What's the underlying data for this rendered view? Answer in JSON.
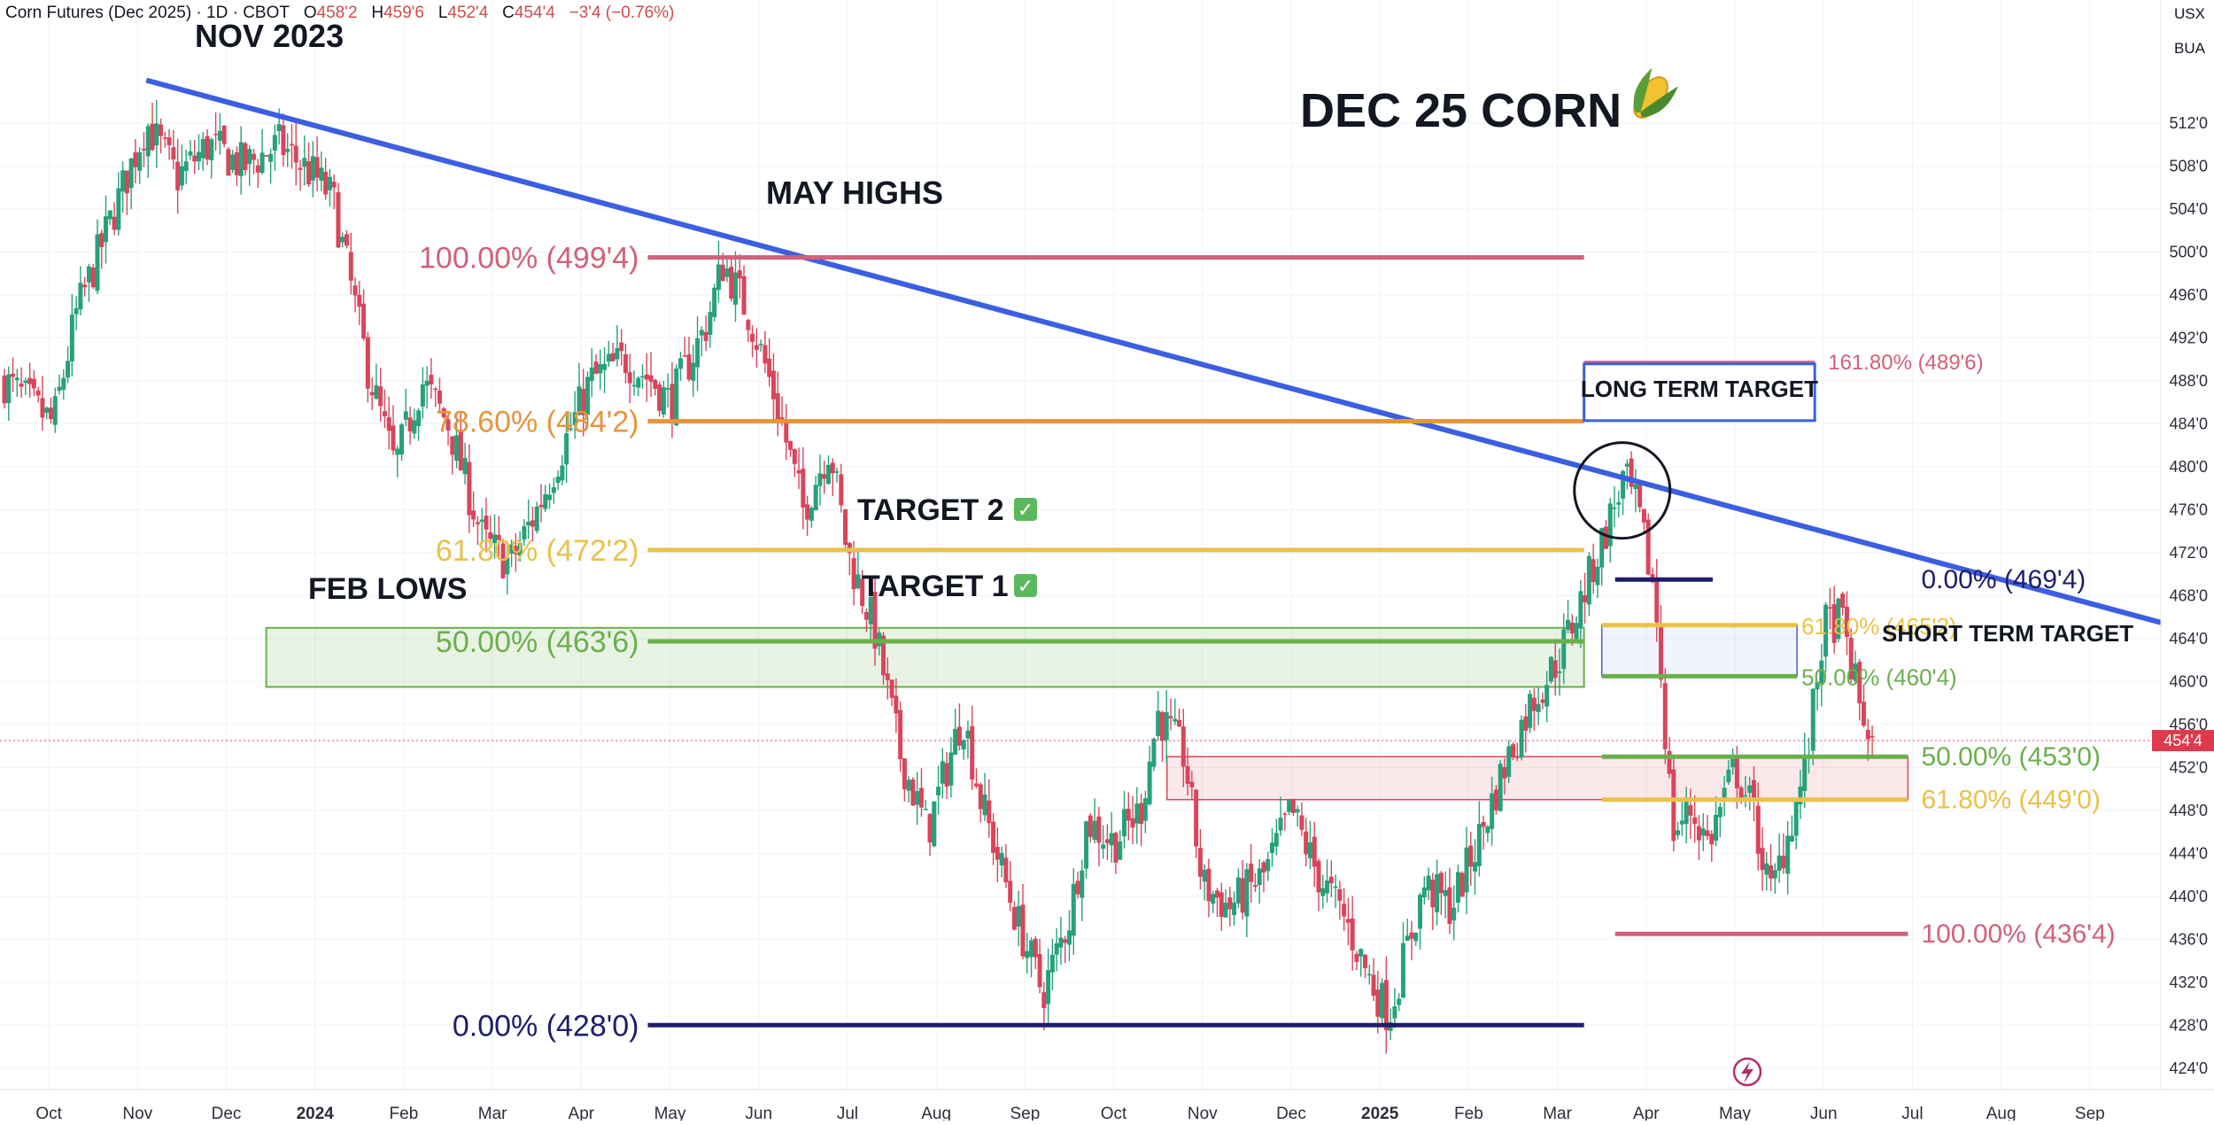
{
  "header": {
    "instrument": "Corn Futures (Dec 2025) · 1D · CBOT",
    "o_label": "O",
    "o_value": "458'2",
    "h_label": "H",
    "h_value": "459'6",
    "l_label": "L",
    "l_value": "452'4",
    "c_label": "C",
    "c_value": "454'4",
    "change": "−3'4 (−0.76%)"
  },
  "currency": "USX",
  "unit": "BUA",
  "last_price_tag": "454'4",
  "colors": {
    "up": "#26a17b",
    "down": "#d9455a",
    "trend": "#3b5fe0",
    "fib100": "#d1607a",
    "fib786": "#e6953b",
    "fib618": "#e8c24a",
    "fib50": "#6ab04c",
    "fib0": "#1f1d6b",
    "zone_green": "#6ab04c",
    "zone_red": "#d9455a"
  },
  "chart_data": {
    "type": "candlestick",
    "title": "DEC 25 CORN",
    "title_icon": "corn-icon",
    "y_axis": {
      "ylim": [
        422,
        521
      ],
      "ticks": [
        424,
        428,
        432,
        436,
        440,
        444,
        448,
        452,
        456,
        460,
        464,
        468,
        472,
        476,
        480,
        484,
        488,
        492,
        496,
        500,
        504,
        508,
        512
      ],
      "tick_labels": [
        "424'0",
        "428'0",
        "432'0",
        "436'0",
        "440'0",
        "444'0",
        "448'0",
        "452'0",
        "456'0",
        "460'0",
        "464'0",
        "468'0",
        "472'0",
        "476'0",
        "480'0",
        "484'0",
        "488'0",
        "492'0",
        "496'0",
        "500'0",
        "504'0",
        "508'0",
        "512'0"
      ],
      "side": "right"
    },
    "x_axis": {
      "range_months": [
        -0.55,
        23.8
      ],
      "tick_labels": [
        "Oct",
        "Nov",
        "Dec",
        "2024",
        "Feb",
        "Mar",
        "Apr",
        "May",
        "Jun",
        "Jul",
        "Aug",
        "Sep",
        "Oct",
        "Nov",
        "Dec",
        "2025",
        "Feb",
        "Mar",
        "Apr",
        "May",
        "Jun",
        "Jul",
        "Aug",
        "Sep"
      ],
      "bold_labels": [
        "2024",
        "2025"
      ]
    },
    "price_path_anchors": [
      [
        -0.5,
        488
      ],
      [
        0.05,
        484
      ],
      [
        0.3,
        494
      ],
      [
        0.7,
        503
      ],
      [
        1.1,
        512
      ],
      [
        1.45,
        507
      ],
      [
        1.8,
        510
      ],
      [
        2.2,
        508
      ],
      [
        2.6,
        510
      ],
      [
        3.0,
        507
      ],
      [
        3.2,
        505
      ],
      [
        3.6,
        489
      ],
      [
        3.9,
        480
      ],
      [
        4.2,
        488
      ],
      [
        4.5,
        484
      ],
      [
        4.9,
        473
      ],
      [
        5.2,
        471
      ],
      [
        5.5,
        476
      ],
      [
        5.8,
        482
      ],
      [
        6.1,
        488
      ],
      [
        6.5,
        490
      ],
      [
        6.8,
        488
      ],
      [
        7.0,
        486
      ],
      [
        7.4,
        493
      ],
      [
        7.6,
        499
      ],
      [
        7.9,
        494
      ],
      [
        8.2,
        486
      ],
      [
        8.5,
        476
      ],
      [
        8.8,
        482
      ],
      [
        9.0,
        472
      ],
      [
        9.3,
        465
      ],
      [
        9.6,
        453
      ],
      [
        9.9,
        446
      ],
      [
        10.3,
        457
      ],
      [
        10.5,
        449
      ],
      [
        10.9,
        438
      ],
      [
        11.2,
        431
      ],
      [
        11.5,
        438
      ],
      [
        11.7,
        447
      ],
      [
        12.0,
        445
      ],
      [
        12.3,
        448
      ],
      [
        12.5,
        457
      ],
      [
        12.8,
        453
      ],
      [
        13.0,
        441
      ],
      [
        13.3,
        439
      ],
      [
        13.7,
        442
      ],
      [
        14.0,
        448
      ],
      [
        14.3,
        442
      ],
      [
        14.6,
        438
      ],
      [
        14.9,
        432
      ],
      [
        15.1,
        429
      ],
      [
        15.3,
        435
      ],
      [
        15.5,
        441
      ],
      [
        15.8,
        439
      ],
      [
        16.1,
        445
      ],
      [
        16.4,
        452
      ],
      [
        16.7,
        458
      ],
      [
        17.0,
        462
      ],
      [
        17.2,
        466
      ],
      [
        17.5,
        473
      ],
      [
        17.75,
        479
      ],
      [
        17.9,
        476
      ],
      [
        18.1,
        468
      ],
      [
        18.3,
        446
      ],
      [
        18.5,
        448
      ],
      [
        18.7,
        445
      ],
      [
        19.0,
        452
      ],
      [
        19.2,
        448
      ],
      [
        19.4,
        440
      ],
      [
        19.6,
        446
      ],
      [
        19.8,
        452
      ],
      [
        20.0,
        465
      ],
      [
        20.2,
        466
      ],
      [
        20.4,
        458
      ],
      [
        20.55,
        454
      ]
    ],
    "trendline": {
      "from": [
        1.1,
        516
      ],
      "to": [
        23.8,
        465.5
      ]
    },
    "fib_levels": [
      {
        "label": "100.00% (499'4)",
        "price": 499.5,
        "color_key": "fib100"
      },
      {
        "label": "78.60% (484'2)",
        "price": 484.25,
        "color_key": "fib786"
      },
      {
        "label": "61.80% (472'2)",
        "price": 472.25,
        "color_key": "fib618"
      },
      {
        "label": "50.00% (463'6)",
        "price": 463.75,
        "color_key": "fib50"
      },
      {
        "label": "0.00% (428'0)",
        "price": 428.0,
        "color_key": "fib0"
      }
    ],
    "fib_levels_right": [
      {
        "label": "0.00% (469'4)",
        "price": 469.5,
        "color_key": "fib0"
      },
      {
        "label": "61.80% (465'2)",
        "price": 465.25,
        "color_key": "fib618"
      },
      {
        "label": "50.00% (460'4)",
        "price": 460.5,
        "color_key": "fib50"
      },
      {
        "label": "50.00% (453'0)",
        "price": 453.0,
        "color_key": "fib50"
      },
      {
        "label": "61.80% (449'0)",
        "price": 449.0,
        "color_key": "fib618"
      },
      {
        "label": "100.00% (436'4)",
        "price": 436.5,
        "color_key": "fib100"
      }
    ],
    "extension_level": {
      "label": "161.80% (489'6)",
      "price": 489.75
    },
    "zones": [
      {
        "name": "feb-lows-zone",
        "price_top": 465,
        "price_bottom": 459.5,
        "color_key": "zone_green"
      },
      {
        "name": "support-zone",
        "price_top": 453,
        "price_bottom": 449,
        "color_key": "zone_red"
      },
      {
        "name": "short-term-target-zone",
        "price_top": 465.25,
        "price_bottom": 460.5,
        "color_key": "trend"
      }
    ],
    "annotations": {
      "nov_2023": "NOV 2023",
      "may_highs": "MAY HIGHS",
      "feb_lows": "FEB LOWS",
      "target_2": "TARGET 2",
      "target_1": "TARGET 1",
      "long_term_target": "LONG TERM TARGET",
      "short_term_target": "SHORT TERM TARGET",
      "check": "✓"
    },
    "last_price": 454.5,
    "grid": true
  }
}
